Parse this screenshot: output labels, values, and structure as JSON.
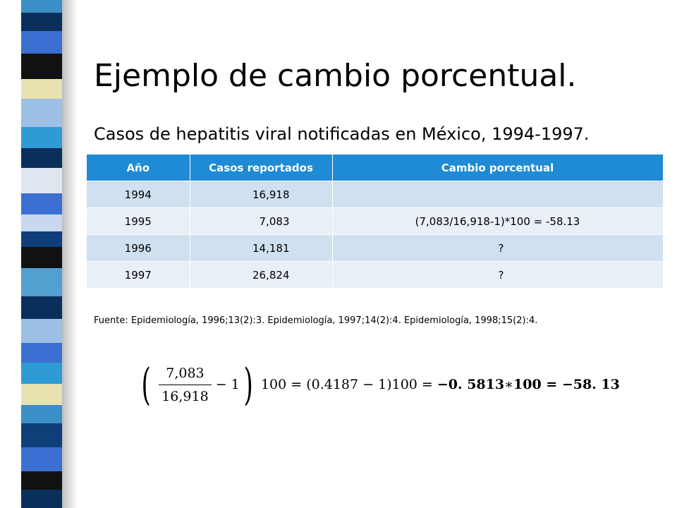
{
  "slide": {
    "title": "Ejemplo de cambio porcentual.",
    "subtitle": "Casos de hepatitis viral notificadas en México, 1994-1997.",
    "source": "Fuente: Epidemiología, 1996;13(2):3. Epidemiología, 1997;14(2):4. Epidemiología, 1998;15(2):4."
  },
  "table": {
    "headers": [
      "Año",
      "Casos reportados",
      "Cambio porcentual"
    ],
    "rows": [
      [
        "1994",
        "16,918",
        ""
      ],
      [
        "1995",
        "7,083",
        "(7,083/16,918-1)*100  = -58.13"
      ],
      [
        "1996",
        "14,181",
        "?"
      ],
      [
        "1997",
        "26,824",
        "?"
      ]
    ]
  },
  "formula": {
    "open": "(",
    "numerator": "7,083",
    "denominator": "16,918",
    "minus_one": "− 1",
    "close": ")",
    "rest": "100 = (0.4187 − 1)100 = ",
    "bold_part1": "−0. 5813",
    "star": " ∗ ",
    "bold_part2": "100 = −58. 13"
  },
  "colors": {
    "header": "#1f8ad6",
    "row_odd": "#cfe0f0",
    "row_even": "#e8eff7"
  }
}
